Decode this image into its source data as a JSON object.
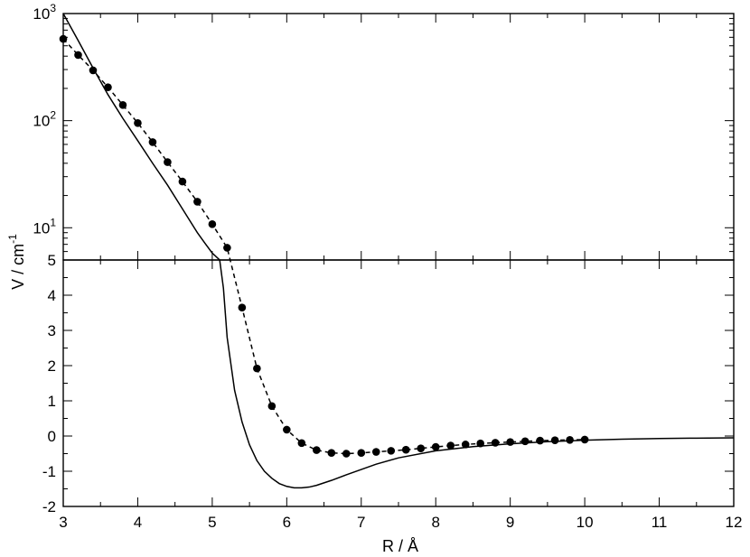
{
  "chart_data": {
    "type": "line",
    "xlabel": "R / Å",
    "ylabel": "V / cm",
    "ylabel_superscript": "-1",
    "xlim": [
      3,
      12
    ],
    "x_ticks": [
      "3",
      "4",
      "5",
      "6",
      "7",
      "8",
      "9",
      "10",
      "11",
      "12"
    ],
    "grid": false,
    "legend": "none",
    "panels": [
      {
        "name": "upper",
        "yscale": "log",
        "ylim": [
          5,
          1000
        ],
        "y_ticks": [
          {
            "value": 10,
            "base": "10",
            "exp": "1"
          },
          {
            "value": 100,
            "base": "10",
            "exp": "2"
          },
          {
            "value": 1000,
            "base": "10",
            "exp": "3"
          }
        ]
      },
      {
        "name": "lower",
        "yscale": "linear",
        "ylim": [
          -2,
          5
        ],
        "y_ticks": [
          "-2",
          "-1",
          "0",
          "1",
          "2",
          "3",
          "4",
          "5"
        ]
      }
    ],
    "series": [
      {
        "style": "solid",
        "color": "#000000",
        "x": [
          3.0,
          3.2,
          3.4,
          3.6,
          3.8,
          4.0,
          4.2,
          4.4,
          4.6,
          4.8,
          4.9,
          5.0,
          5.1,
          5.15,
          5.2,
          5.3,
          5.4,
          5.5,
          5.6,
          5.7,
          5.8,
          5.9,
          6.0,
          6.1,
          6.2,
          6.3,
          6.4,
          6.5,
          6.6,
          6.8,
          7.0,
          7.2,
          7.5,
          8.0,
          8.5,
          9.0,
          9.5,
          10.0,
          10.5,
          11.0,
          11.5,
          12.0
        ],
        "y": [
          1000,
          560,
          310,
          175,
          105,
          65,
          40,
          25,
          15,
          9.0,
          7.2,
          5.8,
          5.0,
          4.2,
          2.8,
          1.3,
          0.4,
          -0.25,
          -0.7,
          -1.0,
          -1.2,
          -1.35,
          -1.43,
          -1.47,
          -1.47,
          -1.45,
          -1.4,
          -1.33,
          -1.26,
          -1.1,
          -0.95,
          -0.8,
          -0.62,
          -0.42,
          -0.3,
          -0.22,
          -0.16,
          -0.12,
          -0.09,
          -0.07,
          -0.06,
          -0.05
        ]
      },
      {
        "style": "dashed-markers",
        "color": "#000000",
        "x": [
          3.0,
          3.2,
          3.4,
          3.6,
          3.8,
          4.0,
          4.2,
          4.4,
          4.6,
          4.8,
          5.0,
          5.2,
          5.4,
          5.6,
          5.8,
          6.0,
          6.2,
          6.4,
          6.6,
          6.8,
          7.0,
          7.2,
          7.4,
          7.6,
          7.8,
          8.0,
          8.2,
          8.4,
          8.6,
          8.8,
          9.0,
          9.2,
          9.4,
          9.6,
          9.8,
          10.0
        ],
        "y": [
          580,
          410,
          295,
          205,
          140,
          95,
          63,
          41,
          27,
          17.5,
          10.8,
          6.5,
          3.65,
          1.92,
          0.85,
          0.18,
          -0.2,
          -0.4,
          -0.48,
          -0.5,
          -0.48,
          -0.45,
          -0.42,
          -0.39,
          -0.35,
          -0.31,
          -0.27,
          -0.24,
          -0.21,
          -0.19,
          -0.17,
          -0.15,
          -0.13,
          -0.12,
          -0.11,
          -0.1
        ]
      }
    ]
  }
}
